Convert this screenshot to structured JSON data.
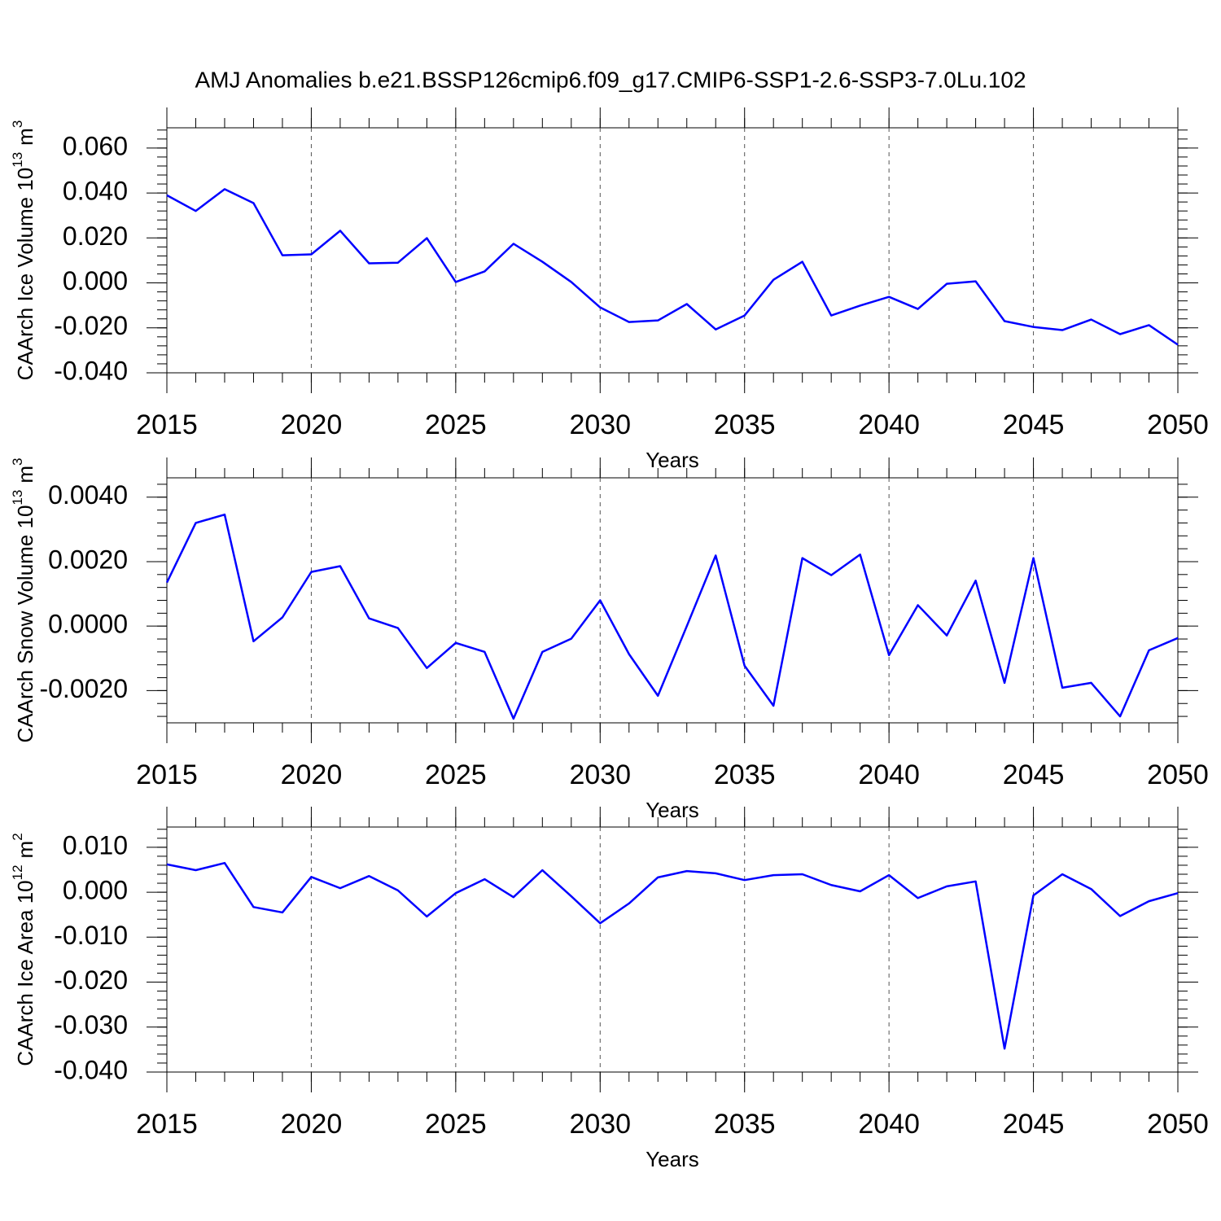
{
  "chart_data": [
    {
      "type": "line",
      "title": "AMJ Anomalies b.e21.BSSP126cmip6.f09_g17.CMIP6-SSP1-2.6-SSP3-7.0Lu.102",
      "xlabel": "Years",
      "ylabel": {
        "text": "CAArch Ice Volume 10",
        "exponent": "13",
        "unit": "m",
        "unit_exponent": "3"
      },
      "x": [
        2015,
        2016,
        2017,
        2018,
        2019,
        2020,
        2021,
        2022,
        2023,
        2024,
        2025,
        2026,
        2027,
        2028,
        2029,
        2030,
        2031,
        2032,
        2033,
        2034,
        2035,
        2036,
        2037,
        2038,
        2039,
        2040,
        2041,
        2042,
        2043,
        2044,
        2045,
        2046,
        2047,
        2048,
        2049,
        2050
      ],
      "series": [
        {
          "color": "#0000ff",
          "values": [
            0.039,
            0.032,
            0.0417,
            0.0355,
            0.0123,
            0.0127,
            0.0232,
            0.0087,
            0.009,
            0.0199,
            0.0004,
            0.0051,
            0.0174,
            0.0094,
            0.0004,
            -0.0109,
            -0.0174,
            -0.0167,
            -0.0094,
            -0.0207,
            -0.0145,
            0.0014,
            0.0094,
            -0.0145,
            -0.0101,
            -0.0062,
            -0.0116,
            -0.0004,
            0.0007,
            -0.017,
            -0.0196,
            -0.021,
            -0.0163,
            -0.0228,
            -0.0188,
            -0.0275
          ]
        }
      ],
      "xlim": [
        2015,
        2050
      ],
      "xticks": [
        2015,
        2020,
        2025,
        2030,
        2035,
        2040,
        2045,
        2050
      ],
      "ylim": [
        -0.04,
        0.069
      ],
      "yticks": [
        {
          "value": -0.04,
          "label": "-0.040"
        },
        {
          "value": -0.02,
          "label": "-0.020"
        },
        {
          "value": 0,
          "label": "0.000"
        },
        {
          "value": 0.02,
          "label": "0.020"
        },
        {
          "value": 0.04,
          "label": "0.040"
        },
        {
          "value": 0.06,
          "label": "0.060"
        }
      ],
      "xgrid": true
    },
    {
      "type": "line",
      "xlabel": "Years",
      "ylabel": {
        "text": "CAArch Snow Volume 10",
        "exponent": "13",
        "unit": "m",
        "unit_exponent": "3"
      },
      "x": [
        2015,
        2016,
        2017,
        2018,
        2019,
        2020,
        2021,
        2022,
        2023,
        2024,
        2025,
        2026,
        2027,
        2028,
        2029,
        2030,
        2031,
        2032,
        2033,
        2034,
        2035,
        2036,
        2037,
        2038,
        2039,
        2040,
        2041,
        2042,
        2043,
        2044,
        2045,
        2046,
        2047,
        2048,
        2049,
        2050
      ],
      "series": [
        {
          "color": "#0000ff",
          "values": [
            0.00135,
            0.0032,
            0.00346,
            -0.00047,
            0.00027,
            0.00168,
            0.00186,
            0.00024,
            -6e-05,
            -0.0013,
            -0.00052,
            -0.0008,
            -0.00287,
            -0.0008,
            -0.00039,
            0.0008,
            -0.00087,
            -0.00216,
            0,
            0.00219,
            -0.00123,
            -0.00247,
            0.00211,
            0.00158,
            0.00222,
            -0.0009,
            0.00065,
            -0.00029,
            0.00141,
            -0.00176,
            0.00211,
            -0.00191,
            -0.00176,
            -0.0028,
            -0.00075,
            -0.00037
          ]
        }
      ],
      "xlim": [
        2015,
        2050
      ],
      "xticks": [
        2015,
        2020,
        2025,
        2030,
        2035,
        2040,
        2045,
        2050
      ],
      "ylim": [
        -0.003,
        0.0046
      ],
      "yticks": [
        {
          "value": -0.002,
          "label": "-0.0020"
        },
        {
          "value": 0,
          "label": "0.0000"
        },
        {
          "value": 0.002,
          "label": "0.0020"
        },
        {
          "value": 0.004,
          "label": "0.0040"
        }
      ],
      "xgrid": true
    },
    {
      "type": "line",
      "xlabel": "Years",
      "ylabel": {
        "text": "CAArch Ice Area 10",
        "exponent": "12",
        "unit": "m",
        "unit_exponent": "2"
      },
      "x": [
        2015,
        2016,
        2017,
        2018,
        2019,
        2020,
        2021,
        2022,
        2023,
        2024,
        2025,
        2026,
        2027,
        2028,
        2029,
        2030,
        2031,
        2032,
        2033,
        2034,
        2035,
        2036,
        2037,
        2038,
        2039,
        2040,
        2041,
        2042,
        2043,
        2044,
        2045,
        2046,
        2047,
        2048,
        2049,
        2050
      ],
      "series": [
        {
          "color": "#0000ff",
          "values": [
            0.0062,
            0.0049,
            0.0065,
            -0.0033,
            -0.0045,
            0.0034,
            0.0009,
            0.0036,
            0.0004,
            -0.0054,
            -0.0002,
            0.0029,
            -0.0011,
            0.0049,
            -0.0009,
            -0.0069,
            -0.0025,
            0.0033,
            0.0047,
            0.0042,
            0.0027,
            0.0038,
            0.004,
            0.0016,
            0.0002,
            0.0038,
            -0.0013,
            0.0013,
            0.0024,
            -0.0348,
            -0.0007,
            0.004,
            0.0007,
            -0.0053,
            -0.002,
            -0.0002
          ]
        }
      ],
      "xlim": [
        2015,
        2050
      ],
      "xticks": [
        2015,
        2020,
        2025,
        2030,
        2035,
        2040,
        2045,
        2050
      ],
      "ylim": [
        -0.04,
        0.0145
      ],
      "yticks": [
        {
          "value": -0.04,
          "label": "-0.040"
        },
        {
          "value": -0.03,
          "label": "-0.030"
        },
        {
          "value": -0.02,
          "label": "-0.020"
        },
        {
          "value": -0.01,
          "label": "-0.010"
        },
        {
          "value": 0,
          "label": "0.000"
        },
        {
          "value": 0.01,
          "label": "0.010"
        }
      ],
      "xgrid": true
    }
  ]
}
